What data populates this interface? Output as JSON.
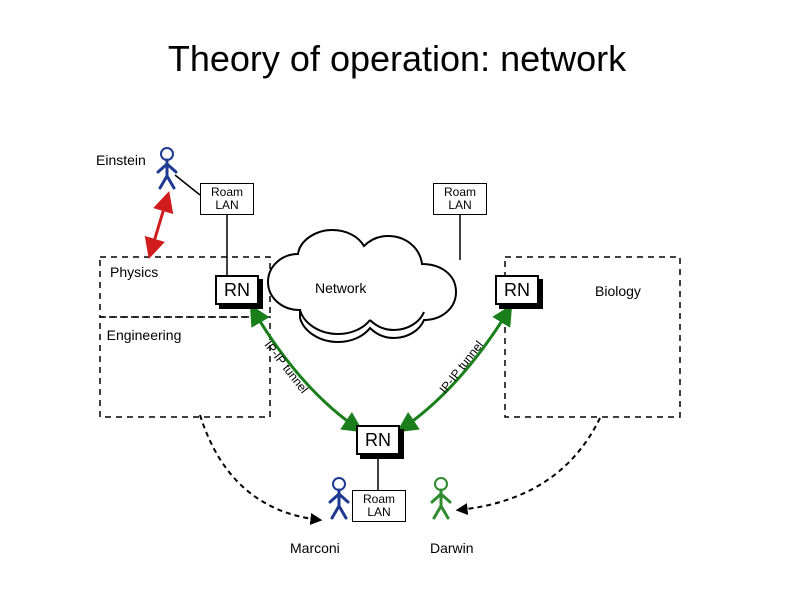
{
  "title": "Theory of operation: network",
  "lan_label": "Roam\nLAN",
  "rn_label": "RN",
  "cloud_label": "Network",
  "regions": {
    "ul": "Physics",
    "ll": "Engineering",
    "ur": "Biology"
  },
  "people": {
    "left": "Einstein",
    "bottom_left": "Marconi",
    "bottom_right": "Darwin"
  },
  "tunnel_text": "IP-IP tunnel",
  "colors": {
    "person_primary": "#1f3a93",
    "person_green": "#2e8b2e",
    "dashed": "#1a1a1a",
    "arrow_red": "#d01c1c",
    "arrow_green": "#1a7f1a",
    "black": "#000000",
    "bg": "#ffffff"
  },
  "layout": {
    "title_fontsize": 36,
    "label_fontsize": 14,
    "rn_fontsize": 18,
    "lan_fontsize": 12,
    "dash": "6,5"
  }
}
